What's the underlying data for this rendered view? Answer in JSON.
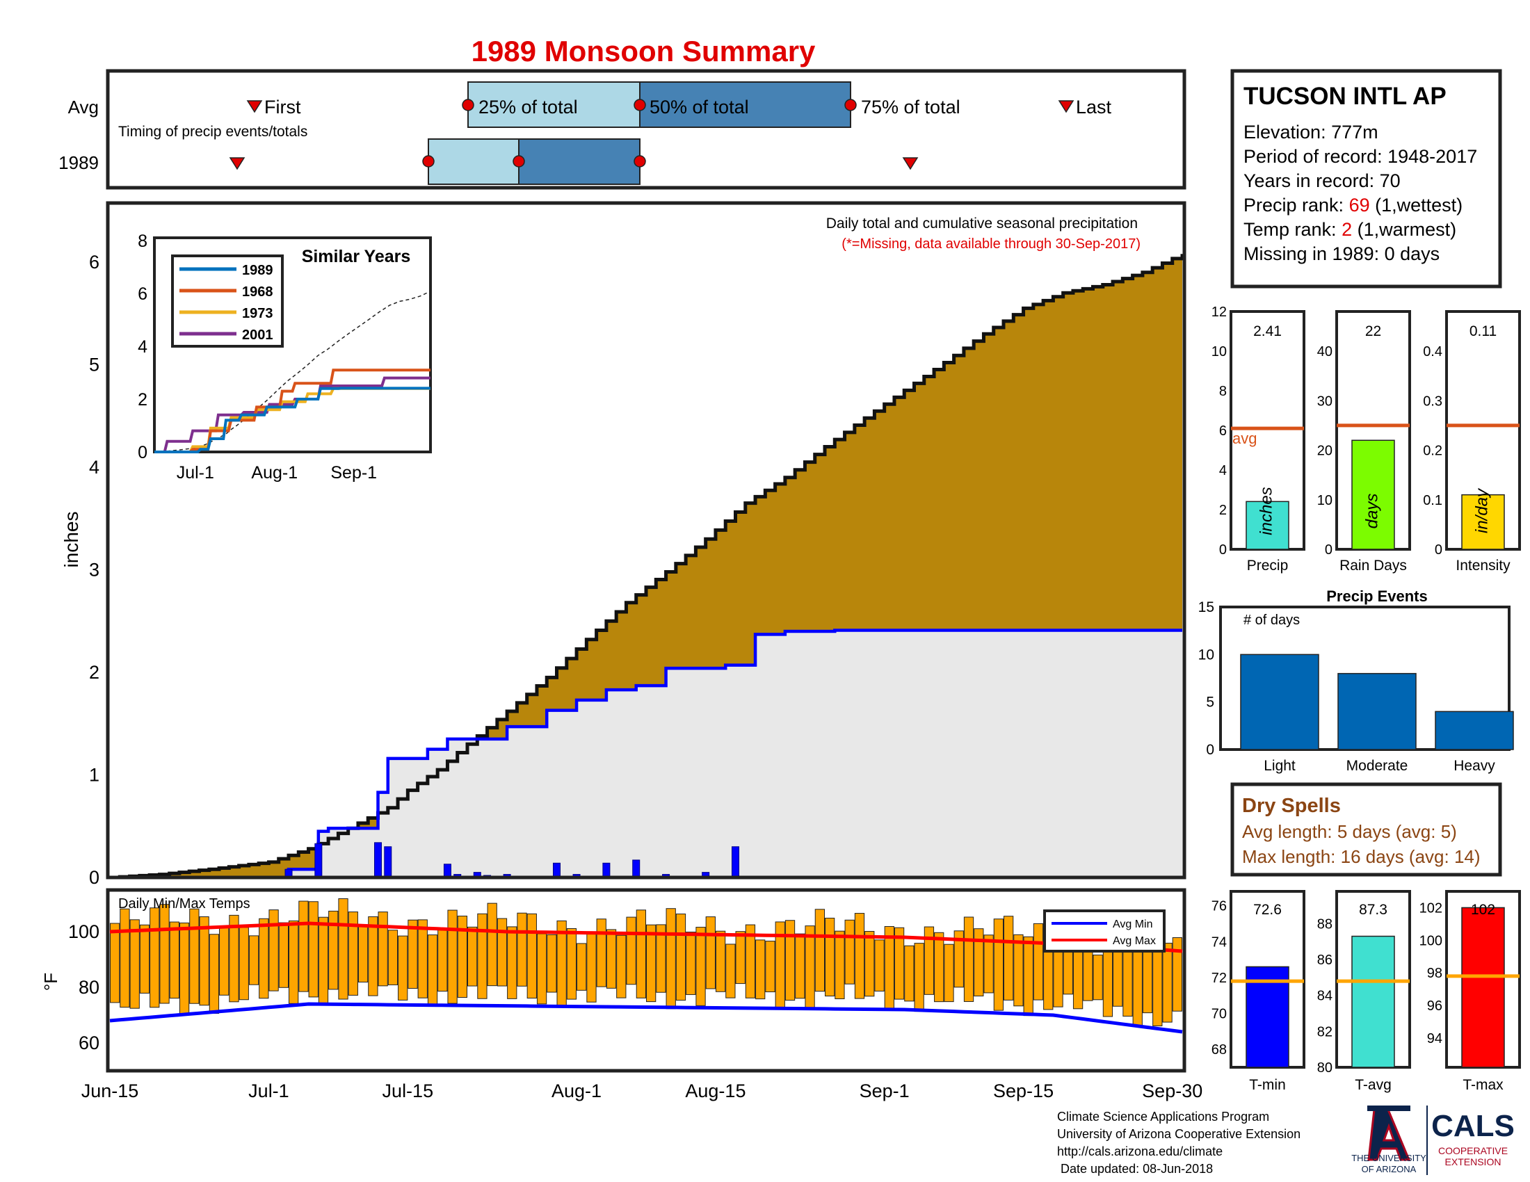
{
  "title": "1989 Monsoon Summary",
  "colors": {
    "title_red": "#e00000",
    "avg_orange": "#d95319",
    "precip_fill": "#b8860b",
    "rain_blue": "#0000ff",
    "dark_blue": "#0066b3",
    "light_blue": "#add8e6",
    "steel_blue": "#4682b4",
    "temp_bar": "#ffa500",
    "max_red": "#ff0000",
    "precip_bar_teal": "#40e0d0",
    "raindays_green": "#7cfc00",
    "intensity_gold": "#ffd700",
    "dry_brown": "#8b4513"
  },
  "timing": {
    "row_avg_label": "Avg",
    "row_year_label": "1989",
    "caption": "Timing of precip events/totals",
    "labels": {
      "first": "First",
      "p25": "25% of total",
      "p50": "50% of total",
      "p75": "75% of total",
      "last": "Last"
    },
    "avg": {
      "first": "Jul-0",
      "p25": "Jul-22",
      "p50": "Aug-4",
      "p75": "Aug-20",
      "last": "Sep-18"
    },
    "year": {
      "first": "Jun-24",
      "p25": "Jul-16",
      "p50": "Jul-23",
      "p75": "Aug-4",
      "last": "Sep-2"
    }
  },
  "station": {
    "name": "TUCSON INTL AP",
    "elevation": "Elevation: 777m",
    "period": "Period of record: 1948-2017",
    "years": "Years in record: 70",
    "precip_rank_prefix": "Precip rank: ",
    "precip_rank_value": "69",
    "precip_rank_suffix": " (1,wettest)",
    "temp_rank_prefix": "Temp rank: ",
    "temp_rank_value": "2",
    "temp_rank_suffix": " (1,warmest)",
    "missing": "Missing in 1989: 0 days"
  },
  "main": {
    "caption": "Daily total and cumulative seasonal precipitation",
    "missing_note": "(*=Missing, data available through 30-Sep-2017)",
    "ylabel": "inches",
    "x_ticks": [
      "Jun-15",
      "Jul-1",
      "Jul-15",
      "Aug-1",
      "Aug-15",
      "Sep-1",
      "Sep-15",
      "Sep-30"
    ],
    "y_ticks": [
      "0",
      "1",
      "2",
      "3",
      "4",
      "5",
      "6"
    ]
  },
  "temps": {
    "caption": "Daily Min/Max Temps",
    "ylabel": "°F",
    "y_ticks": [
      "60",
      "80",
      "100"
    ],
    "legend_min": "Avg Min",
    "legend_max": "Avg Max"
  },
  "inset": {
    "title": "Similar Years",
    "legend": [
      "1989",
      "1968",
      "1973",
      "2001"
    ],
    "x_ticks": [
      "Jul-1",
      "Aug-1",
      "Sep-1"
    ],
    "y_ticks": [
      "0",
      "2",
      "4",
      "6",
      "8"
    ]
  },
  "small_bars": {
    "avg_label": "avg",
    "precip": {
      "label": "Precip",
      "unit": "inches",
      "value": "2.41",
      "ticks": [
        "0",
        "2",
        "4",
        "6",
        "8",
        "10",
        "12"
      ]
    },
    "raindays": {
      "label": "Rain Days",
      "unit": "days",
      "value": "22",
      "ticks": [
        "0",
        "10",
        "20",
        "30",
        "40"
      ]
    },
    "intensity": {
      "label": "Intensity",
      "unit": "in/day",
      "value": "0.11",
      "ticks": [
        "0",
        "0.1",
        "0.2",
        "0.3",
        "0.4"
      ]
    }
  },
  "events": {
    "title": "Precip Events",
    "ylabel": "# of days",
    "y_ticks": [
      "0",
      "5",
      "10",
      "15"
    ],
    "categories": [
      "Light",
      "Moderate",
      "Heavy"
    ]
  },
  "dry_spells": {
    "title": "Dry Spells",
    "avg": "Avg length: 5 days (avg: 5)",
    "max": "Max length: 16 days (avg: 14)"
  },
  "temp_bars": {
    "tmin": {
      "label": "T-min",
      "value": "72.6",
      "ticks": [
        "68",
        "70",
        "72",
        "74",
        "76"
      ]
    },
    "tavg": {
      "label": "T-avg",
      "value": "87.3",
      "ticks": [
        "80",
        "82",
        "84",
        "86",
        "88"
      ]
    },
    "tmax": {
      "label": "T-max",
      "value": "102",
      "ticks": [
        "94",
        "96",
        "98",
        "100",
        "102"
      ]
    }
  },
  "footer": {
    "line1": "Climate Science Applications Program",
    "line2": "University of Arizona Cooperative Extension",
    "line3": "http://cals.arizona.edu/climate",
    "line4": " Date updated: 08-Jun-2018",
    "ua_line1": "THE UNIVERSITY",
    "ua_line2": "OF ARIZONA",
    "cals": "CALS",
    "cals_sub1": "COOPERATIVE",
    "cals_sub2": "EXTENSION"
  },
  "chart_data": [
    {
      "type": "area",
      "name": "cumulative_precip",
      "title": "Daily total and cumulative seasonal precipitation",
      "ylabel": "inches",
      "xlim": [
        "Jun-15",
        "Sep-30"
      ],
      "ylim": [
        0,
        6.5
      ],
      "series": [
        {
          "name": "Average cumulative",
          "x": [
            0,
            5,
            10,
            16,
            20,
            24,
            28,
            30,
            33,
            36,
            40,
            44,
            48,
            52,
            56,
            60,
            64,
            68,
            72,
            76,
            80,
            84,
            88,
            92,
            96,
            100,
            104,
            108
          ],
          "values": [
            0,
            0.03,
            0.08,
            0.15,
            0.28,
            0.48,
            0.68,
            0.85,
            1.05,
            1.3,
            1.62,
            1.95,
            2.32,
            2.68,
            2.98,
            3.3,
            3.65,
            3.9,
            4.2,
            4.48,
            4.75,
            5.02,
            5.3,
            5.55,
            5.7,
            5.78,
            5.9,
            6.08
          ]
        },
        {
          "name": "1989 cumulative",
          "x": [
            0,
            18,
            21,
            22,
            27,
            28,
            32,
            34,
            40,
            44,
            47,
            50,
            53,
            56,
            58,
            62,
            65,
            68,
            72,
            73,
            108
          ],
          "values": [
            0,
            0.08,
            0.45,
            0.48,
            0.83,
            1.16,
            1.25,
            1.35,
            1.47,
            1.63,
            1.73,
            1.83,
            1.87,
            2.04,
            2.04,
            2.07,
            2.37,
            2.4,
            2.4,
            2.41,
            2.41
          ]
        },
        {
          "name": "1989 daily",
          "x": [
            18,
            21,
            27,
            28,
            34,
            35,
            37,
            38,
            40,
            45,
            47,
            50,
            53,
            56,
            60,
            63
          ],
          "values": [
            0.08,
            0.33,
            0.34,
            0.3,
            0.13,
            0.03,
            0.05,
            0.02,
            0.03,
            0.14,
            0.03,
            0.14,
            0.17,
            0.03,
            0.05,
            0.3
          ]
        }
      ]
    },
    {
      "type": "bar",
      "name": "daily_temps",
      "title": "Daily Min/Max Temps",
      "ylabel": "°F",
      "ylim": [
        50,
        115
      ],
      "series": [
        {
          "name": "Avg Min",
          "x": [
            0,
            20,
            50,
            80,
            95,
            108
          ],
          "values": [
            68,
            74,
            73,
            72,
            70,
            64
          ]
        },
        {
          "name": "Avg Max",
          "x": [
            0,
            20,
            40,
            60,
            80,
            100,
            108
          ],
          "values": [
            100,
            103,
            100,
            99,
            98,
            95,
            93
          ]
        }
      ]
    },
    {
      "type": "bar",
      "name": "season_stats",
      "categories": [
        "Precip",
        "Rain Days",
        "Intensity"
      ],
      "values": [
        2.41,
        22,
        0.11
      ],
      "avg": [
        6.1,
        25,
        0.25
      ]
    },
    {
      "type": "bar",
      "name": "precip_events",
      "title": "Precip Events",
      "categories": [
        "Light",
        "Moderate",
        "Heavy"
      ],
      "values": [
        10,
        8,
        4
      ],
      "ylim": [
        0,
        15
      ]
    },
    {
      "type": "bar",
      "name": "temperature_stats",
      "categories": [
        "T-min",
        "T-avg",
        "T-max"
      ],
      "values": [
        72.6,
        87.3,
        102
      ],
      "avg": [
        71.8,
        84.8,
        97.8
      ]
    },
    {
      "type": "line",
      "name": "similar_years",
      "title": "Similar Years",
      "ylim": [
        0,
        8
      ],
      "series": [
        {
          "name": "1989",
          "x": [
            0,
            18,
            22,
            28,
            34,
            44,
            56,
            65,
            73,
            108
          ],
          "values": [
            0,
            0.1,
            0.5,
            1.2,
            1.4,
            1.7,
            2.0,
            2.4,
            2.41,
            2.41
          ]
        },
        {
          "name": "1968",
          "x": [
            0,
            15,
            22,
            30,
            40,
            50,
            55,
            60,
            70,
            80,
            108
          ],
          "values": [
            0,
            0.1,
            0.8,
            1.2,
            1.7,
            2.3,
            2.6,
            2.6,
            3.1,
            3.1,
            3.1
          ]
        },
        {
          "name": "1973",
          "x": [
            0,
            15,
            22,
            30,
            40,
            50,
            60,
            70,
            108
          ],
          "values": [
            0,
            0.2,
            0.9,
            1.3,
            1.6,
            1.9,
            2.2,
            2.4,
            2.4
          ]
        },
        {
          "name": "2001",
          "x": [
            0,
            5,
            15,
            25,
            35,
            45,
            55,
            65,
            85,
            90,
            108
          ],
          "values": [
            0,
            0.4,
            0.8,
            1.4,
            1.5,
            1.8,
            2.0,
            2.5,
            2.5,
            2.8,
            2.8
          ]
        }
      ]
    }
  ]
}
